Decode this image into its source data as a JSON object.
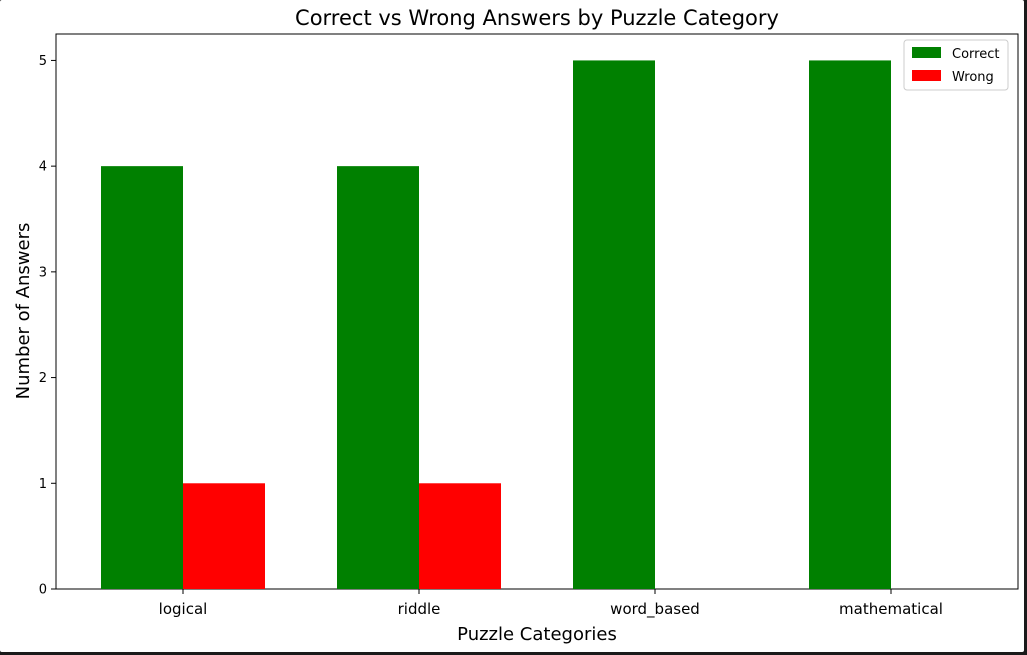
{
  "chart_data": {
    "type": "bar",
    "title": "Correct vs Wrong Answers by Puzzle Category",
    "xlabel": "Puzzle Categories",
    "ylabel": "Number of Answers",
    "categories": [
      "logical",
      "riddle",
      "word_based",
      "mathematical"
    ],
    "series": [
      {
        "name": "Correct",
        "color": "#008000",
        "values": [
          4,
          4,
          5,
          5
        ]
      },
      {
        "name": "Wrong",
        "color": "#ff0000",
        "values": [
          1,
          1,
          0,
          0
        ]
      }
    ],
    "ylim": [
      0,
      5.25
    ],
    "yticks": [
      0,
      1,
      2,
      3,
      4,
      5
    ],
    "grid": false,
    "legend_position": "top-right"
  }
}
